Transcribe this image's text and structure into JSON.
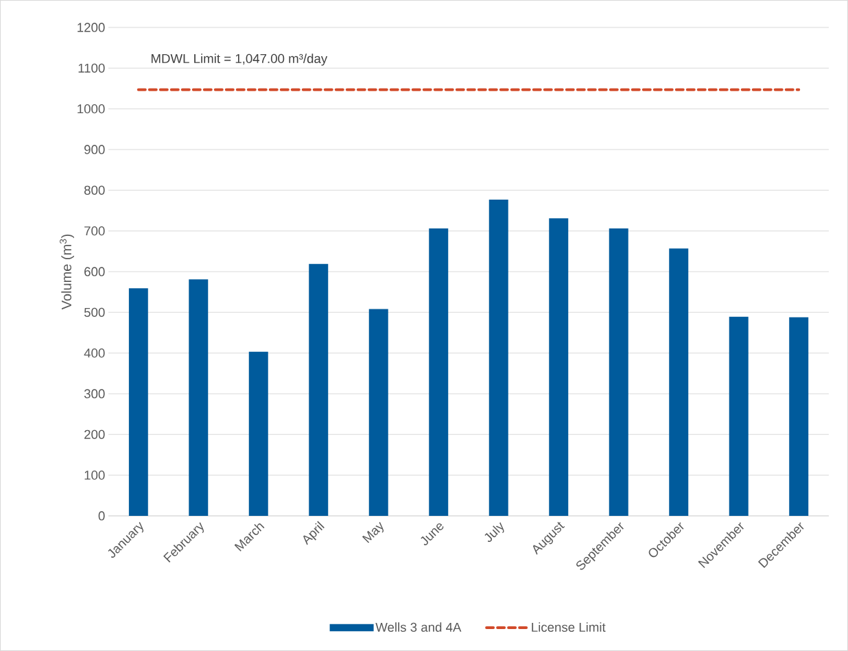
{
  "chart_data": {
    "type": "bar",
    "ylabel": "Volume (m$^{3}$)",
    "categories": [
      "January",
      "February",
      "March",
      "April",
      "May",
      "June",
      "July",
      "August",
      "September",
      "October",
      "November",
      "December"
    ],
    "series": [
      {
        "name": "Wells 3 and 4A",
        "color": "#005b9c",
        "values": [
          559,
          581,
          403,
          619,
          508,
          706,
          777,
          731,
          706,
          657,
          489,
          488
        ]
      },
      {
        "name": "License Limit",
        "type": "line",
        "line_style": "dashed",
        "color": "#d24b2b",
        "values": [
          1047,
          1047,
          1047,
          1047,
          1047,
          1047,
          1047,
          1047,
          1047,
          1047,
          1047,
          1047
        ]
      }
    ],
    "annotations": [
      "MDWL Limit = 1,047.00 m³/day"
    ],
    "ylim": [
      0,
      1200
    ],
    "yticks": [
      0,
      100,
      200,
      300,
      400,
      500,
      600,
      700,
      800,
      900,
      1000,
      1100,
      1200
    ],
    "grid": "y",
    "legend": "bottom"
  }
}
